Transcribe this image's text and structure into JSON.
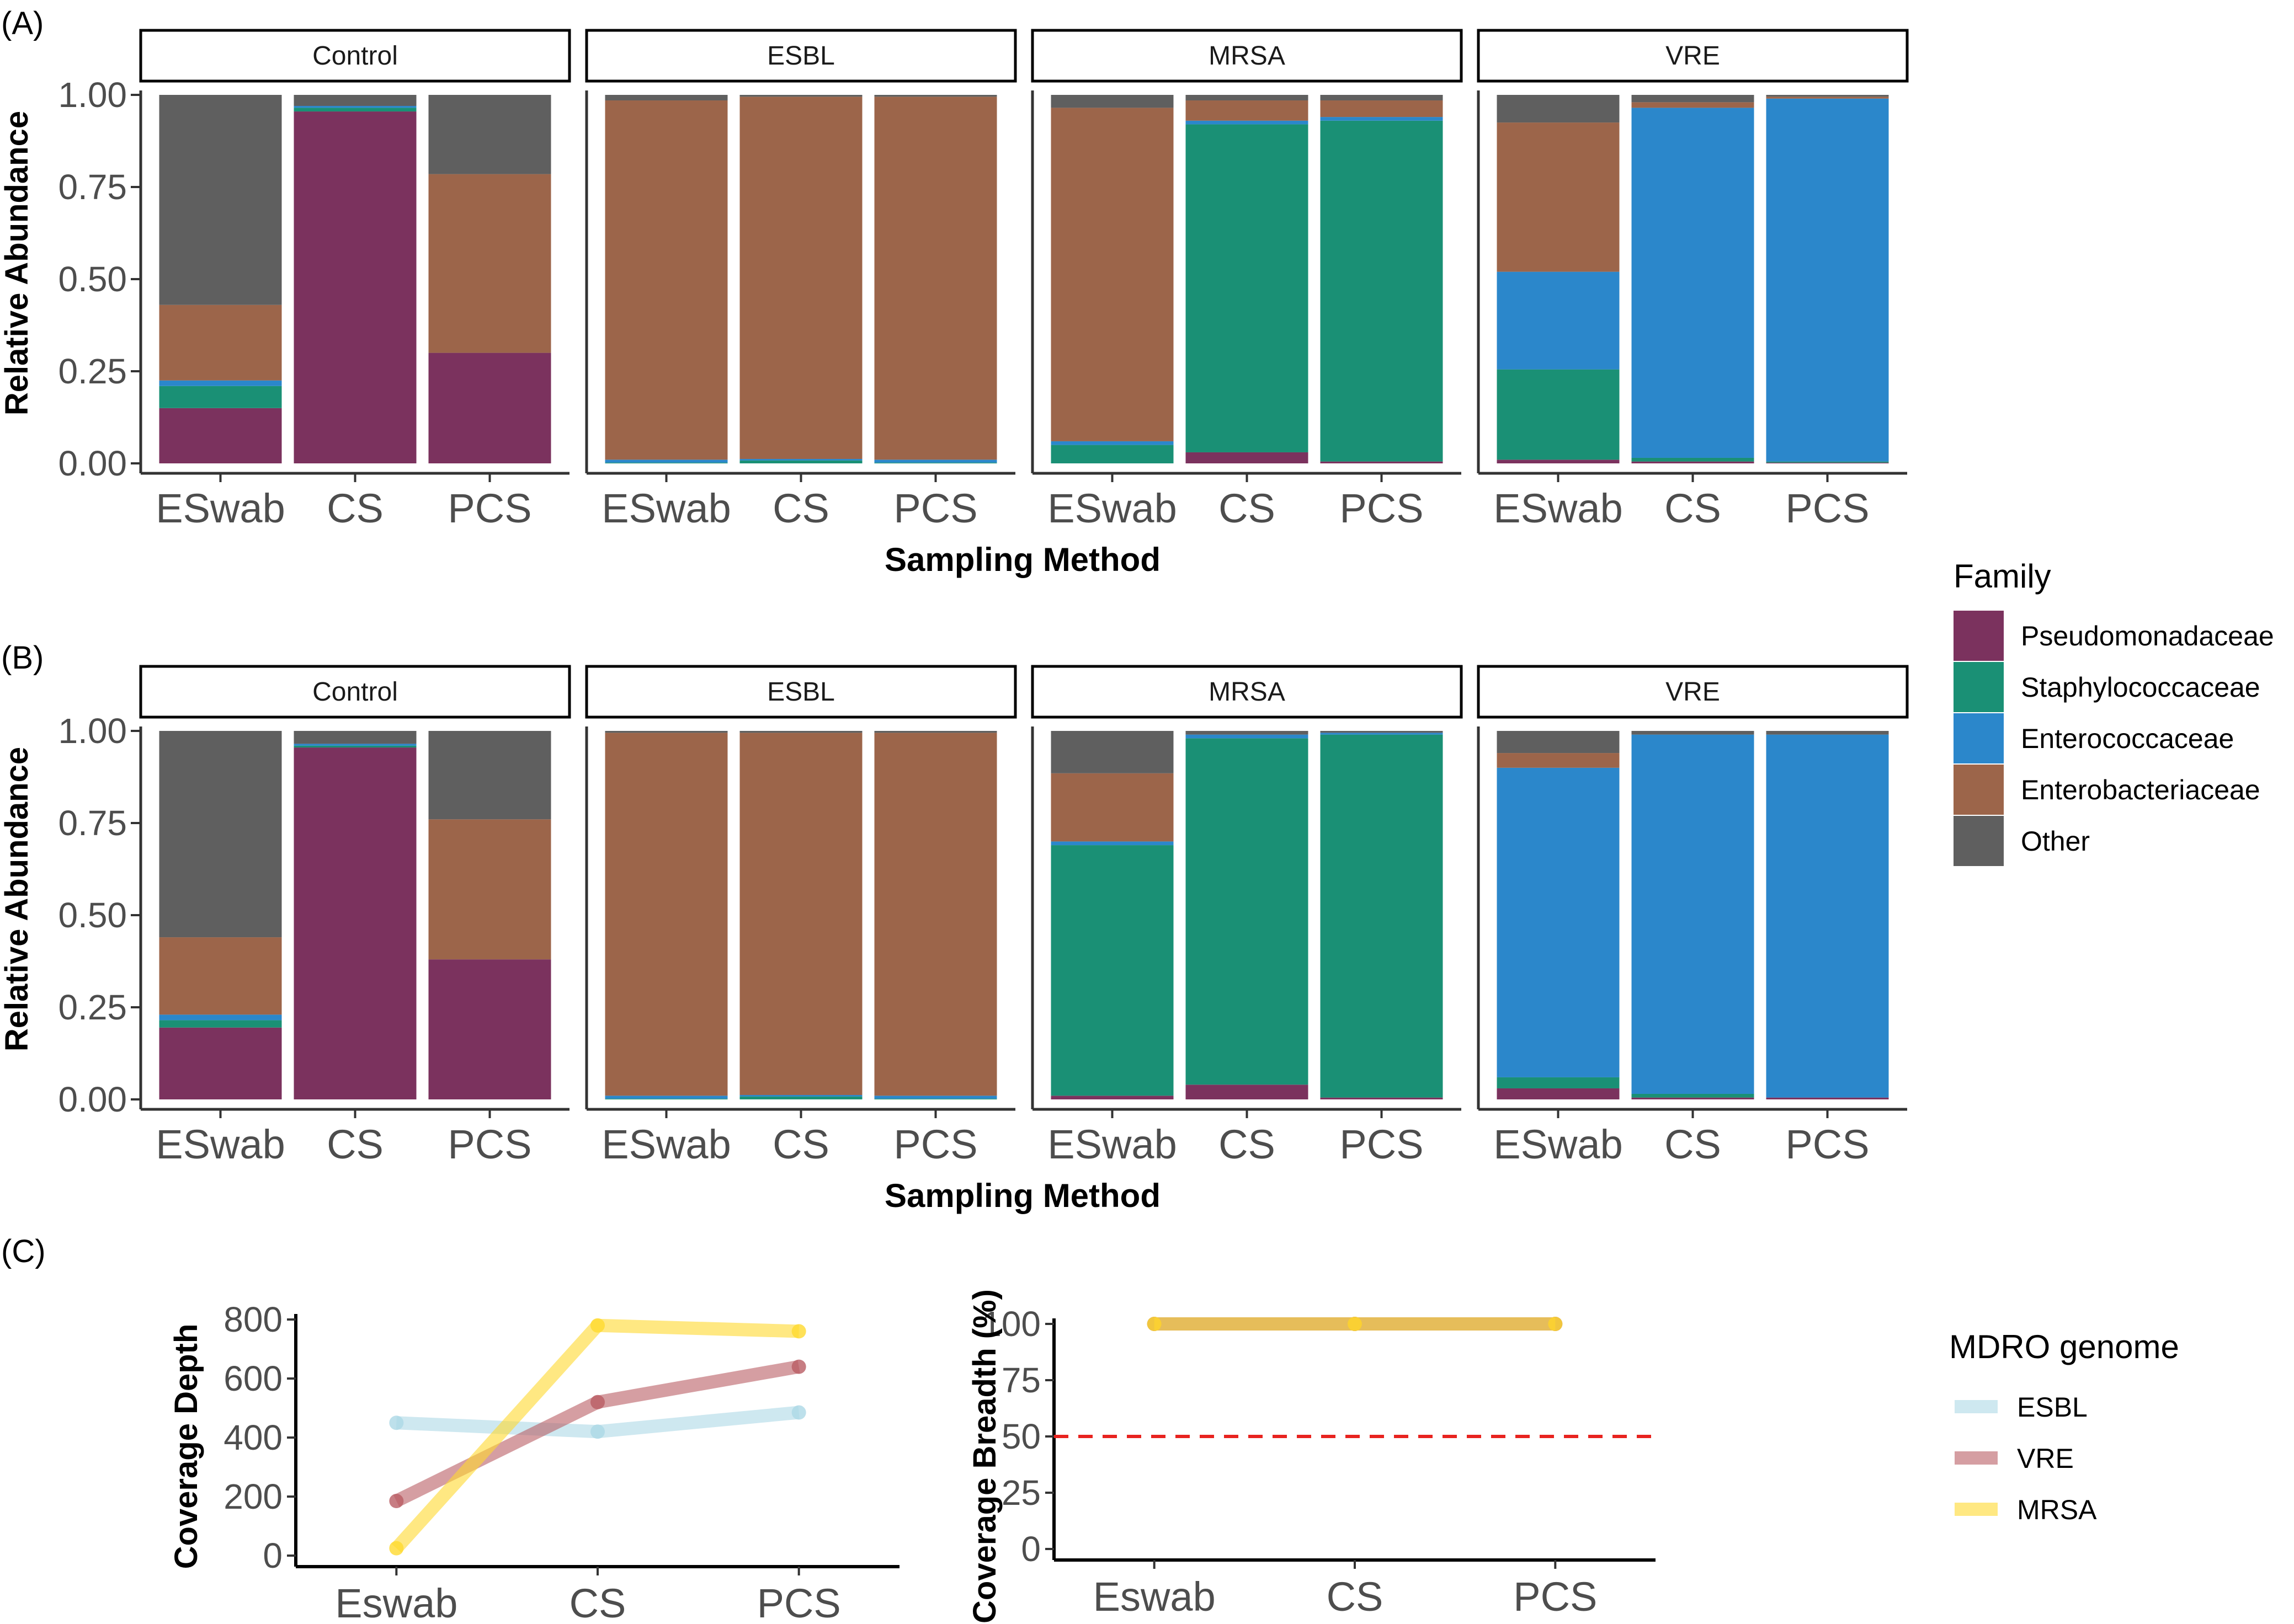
{
  "colors": {
    "Pseudomonadaceae": "#7b325e",
    "Staphylococcaceae": "#1a9075",
    "Enterococcaceae": "#2b87cb",
    "Enterobacteriaceae": "#9c654a",
    "Other": "#5f5f5f",
    "ESBL": "#add8e6",
    "VRE": "#b95d64",
    "MRSA": "#ffd92e",
    "threshold": "#e8231f"
  },
  "labels": {
    "panel_a": "(A)",
    "panel_b": "(B)",
    "panel_c": "(C)",
    "x_title": "Sampling Method",
    "y_title": "Relative Abundance",
    "c_left_y": "Coverage Depth",
    "c_right_y": "Coverage Breadth (%)"
  },
  "legend_family": {
    "title": "Family",
    "items": [
      "Pseudomonadaceae",
      "Staphylococcaceae",
      "Enterococcaceae",
      "Enterobacteriaceae",
      "Other"
    ],
    "item_labels": [
      "Pseudomonadaceae",
      "Staphylococcaceae",
      "Enterococcaceae",
      "Enterobacteriaceae",
      " Other"
    ]
  },
  "legend_mdro": {
    "title": "MDRO genome",
    "items": [
      "ESBL",
      "VRE",
      "MRSA"
    ]
  },
  "chart_data": [
    {
      "type": "bar",
      "id": "A",
      "stacked": true,
      "facets": [
        "Control",
        "ESBL",
        "MRSA",
        "VRE"
      ],
      "categories": [
        "ESwab",
        "CS",
        "PCS"
      ],
      "xlabel": "Sampling Method",
      "ylabel": "Relative Abundance",
      "ylim": [
        0,
        1
      ],
      "yticks": [
        "0.00",
        "0.25",
        "0.50",
        "0.75",
        "1.00"
      ],
      "stack_order": [
        "Pseudomonadaceae",
        "Staphylococcaceae",
        "Enterococcaceae",
        "Enterobacteriaceae",
        "Other"
      ],
      "values": {
        "Control": [
          [
            0.15,
            0.06,
            0.015,
            0.205,
            0.57
          ],
          [
            0.955,
            0.01,
            0.005,
            0.0,
            0.03
          ],
          [
            0.3,
            0.0,
            0.0,
            0.485,
            0.215
          ]
        ],
        "ESBL": [
          [
            0.0,
            0.002,
            0.008,
            0.975,
            0.015
          ],
          [
            0.0,
            0.008,
            0.004,
            0.983,
            0.005
          ],
          [
            0.0,
            0.002,
            0.008,
            0.985,
            0.005
          ]
        ],
        "MRSA": [
          [
            0.0,
            0.05,
            0.01,
            0.905,
            0.035
          ],
          [
            0.03,
            0.89,
            0.01,
            0.055,
            0.015
          ],
          [
            0.005,
            0.925,
            0.01,
            0.045,
            0.015
          ]
        ],
        "VRE": [
          [
            0.01,
            0.245,
            0.265,
            0.405,
            0.075
          ],
          [
            0.005,
            0.01,
            0.95,
            0.015,
            0.02
          ],
          [
            0.002,
            0.003,
            0.985,
            0.005,
            0.005
          ]
        ]
      }
    },
    {
      "type": "bar",
      "id": "B",
      "stacked": true,
      "facets": [
        "Control",
        "ESBL",
        "MRSA",
        "VRE"
      ],
      "categories": [
        "ESwab",
        "CS",
        "PCS"
      ],
      "xlabel": "Sampling Method",
      "ylabel": "Relative Abundance",
      "ylim": [
        0,
        1
      ],
      "yticks": [
        "0.00",
        "0.25",
        "0.50",
        "0.75",
        "1.00"
      ],
      "stack_order": [
        "Pseudomonadaceae",
        "Staphylococcaceae",
        "Enterococcaceae",
        "Enterobacteriaceae",
        "Other"
      ],
      "values": {
        "Control": [
          [
            0.195,
            0.02,
            0.015,
            0.21,
            0.56
          ],
          [
            0.955,
            0.005,
            0.005,
            0.0,
            0.035
          ],
          [
            0.38,
            0.0,
            0.0,
            0.38,
            0.24
          ]
        ],
        "ESBL": [
          [
            0.0,
            0.002,
            0.008,
            0.985,
            0.005
          ],
          [
            0.0,
            0.008,
            0.004,
            0.983,
            0.005
          ],
          [
            0.0,
            0.002,
            0.008,
            0.985,
            0.005
          ]
        ],
        "MRSA": [
          [
            0.01,
            0.68,
            0.01,
            0.185,
            0.115
          ],
          [
            0.04,
            0.94,
            0.01,
            0.0,
            0.01
          ],
          [
            0.005,
            0.985,
            0.005,
            0.0,
            0.005
          ]
        ],
        "VRE": [
          [
            0.03,
            0.03,
            0.84,
            0.04,
            0.06
          ],
          [
            0.005,
            0.01,
            0.975,
            0.0,
            0.01
          ],
          [
            0.005,
            0.0,
            0.985,
            0.0,
            0.01
          ]
        ]
      }
    },
    {
      "type": "line",
      "id": "C-left",
      "x": [
        "Eswab",
        "CS",
        "PCS"
      ],
      "ylabel": "Coverage Depth",
      "ylim": [
        0,
        800
      ],
      "yticks": [
        "0",
        "200",
        "400",
        "600",
        "800"
      ],
      "series": [
        {
          "name": "ESBL",
          "values": [
            450,
            420,
            485
          ]
        },
        {
          "name": "VRE",
          "values": [
            185,
            520,
            640
          ]
        },
        {
          "name": "MRSA",
          "values": [
            25,
            780,
            760
          ]
        }
      ]
    },
    {
      "type": "line",
      "id": "C-right",
      "x": [
        "Eswab",
        "CS",
        "PCS"
      ],
      "ylabel": "Coverage Breadth (%)",
      "ylim": [
        0,
        100
      ],
      "yticks": [
        "0",
        "25",
        "50",
        "75",
        "100"
      ],
      "threshold": 50,
      "series": [
        {
          "name": "ESBL",
          "values": [
            100,
            100,
            100
          ]
        },
        {
          "name": "VRE",
          "values": [
            100,
            100,
            100
          ]
        },
        {
          "name": "MRSA",
          "values": [
            100,
            100,
            100
          ]
        }
      ]
    }
  ]
}
